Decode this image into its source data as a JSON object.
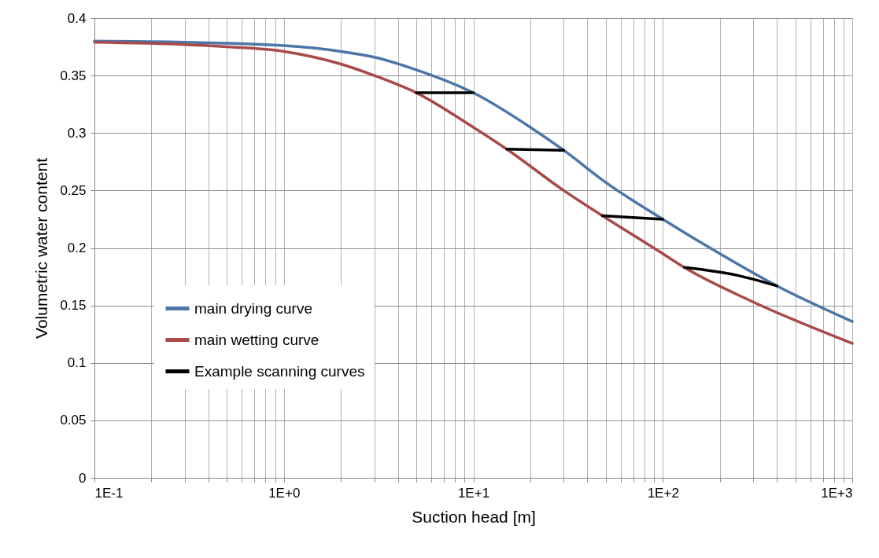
{
  "chart_data": {
    "type": "line",
    "xlabel": "Suction head [m]",
    "ylabel": "Volumetric water content",
    "log": "x",
    "grid": true,
    "legend": "bottom left",
    "line_style": "solid",
    "marker": "none",
    "xlim": [
      0.1,
      1000
    ],
    "ylim": [
      0,
      0.4
    ],
    "xticks": [
      {
        "value": 0.1,
        "label": "1E-1"
      },
      {
        "value": 0.2,
        "label": null
      },
      {
        "value": 0.3,
        "label": null
      },
      {
        "value": 0.4,
        "label": null
      },
      {
        "value": 0.5,
        "label": null
      },
      {
        "value": 0.6,
        "label": null
      },
      {
        "value": 0.7,
        "label": null
      },
      {
        "value": 0.8,
        "label": null
      },
      {
        "value": 0.9,
        "label": null
      },
      {
        "value": 1,
        "label": "1E+0"
      },
      {
        "value": 2,
        "label": null
      },
      {
        "value": 3,
        "label": null
      },
      {
        "value": 4,
        "label": null
      },
      {
        "value": 5,
        "label": null
      },
      {
        "value": 6,
        "label": null
      },
      {
        "value": 7,
        "label": null
      },
      {
        "value": 8,
        "label": null
      },
      {
        "value": 9,
        "label": null
      },
      {
        "value": 10,
        "label": "1E+1"
      },
      {
        "value": 20,
        "label": null
      },
      {
        "value": 30,
        "label": null
      },
      {
        "value": 40,
        "label": null
      },
      {
        "value": 50,
        "label": null
      },
      {
        "value": 60,
        "label": null
      },
      {
        "value": 70,
        "label": null
      },
      {
        "value": 80,
        "label": null
      },
      {
        "value": 90,
        "label": null
      },
      {
        "value": 100,
        "label": "1E+2"
      },
      {
        "value": 200,
        "label": null
      },
      {
        "value": 300,
        "label": null
      },
      {
        "value": 400,
        "label": null
      },
      {
        "value": 500,
        "label": null
      },
      {
        "value": 600,
        "label": null
      },
      {
        "value": 700,
        "label": null
      },
      {
        "value": 800,
        "label": null
      },
      {
        "value": 900,
        "label": null
      },
      {
        "value": 1000,
        "label": "1E+3"
      }
    ],
    "yticks": [
      0,
      0.05,
      0.1,
      0.15,
      0.2,
      0.25,
      0.3,
      0.35,
      0.4
    ],
    "series": [
      {
        "name": "main drying curve",
        "color": "#4a76a8",
        "x": [
          0.1,
          0.3,
          1,
          2,
          3,
          5,
          10,
          20,
          30,
          50,
          100,
          200,
          400,
          1000
        ],
        "values": [
          0.38,
          0.379,
          0.376,
          0.371,
          0.366,
          0.355,
          0.335,
          0.305,
          0.285,
          0.257,
          0.225,
          0.195,
          0.167,
          0.136
        ]
      },
      {
        "name": "main wetting curve",
        "color": "#a94a4a",
        "x": [
          0.1,
          0.3,
          0.5,
          1,
          2,
          3,
          5,
          10,
          15,
          30,
          48,
          100,
          130,
          300,
          1000
        ],
        "values": [
          0.379,
          0.377,
          0.375,
          0.371,
          0.36,
          0.35,
          0.335,
          0.305,
          0.286,
          0.25,
          0.228,
          0.195,
          0.183,
          0.153,
          0.117
        ]
      },
      {
        "name": "Example scanning curves",
        "color": "#000000",
        "x": [
          5,
          10,
          12,
          15,
          30,
          40,
          48,
          100,
          115,
          130,
          250,
          400
        ],
        "values": [
          0.335,
          0.335,
          null,
          0.286,
          0.285,
          null,
          0.228,
          0.225,
          null,
          0.183,
          0.176,
          0.167
        ]
      }
    ]
  }
}
